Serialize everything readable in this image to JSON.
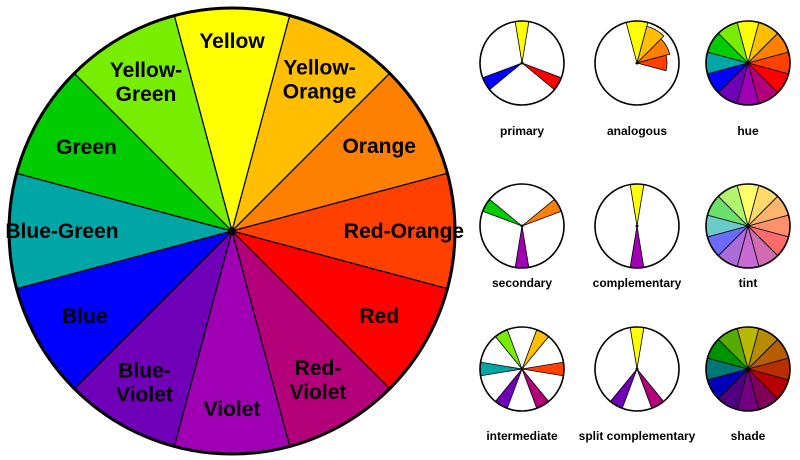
{
  "wheel": {
    "segments": [
      {
        "label": "Yellow",
        "color": "#ffff00"
      },
      {
        "label": "Yellow-Orange",
        "color": "#ffbf00"
      },
      {
        "label": "Orange",
        "color": "#ff8000"
      },
      {
        "label": "Red-Orange",
        "color": "#ff4000"
      },
      {
        "label": "Red",
        "color": "#ff0000"
      },
      {
        "label": "Red-Violet",
        "color": "#b3007a"
      },
      {
        "label": "Violet",
        "color": "#9f00b3"
      },
      {
        "label": "Blue-Violet",
        "color": "#7000b8"
      },
      {
        "label": "Blue",
        "color": "#0000ff"
      },
      {
        "label": "Blue-Green",
        "color": "#00a5a5"
      },
      {
        "label": "Green",
        "color": "#00cc00"
      },
      {
        "label": "Yellow-Green",
        "color": "#77ee00"
      }
    ]
  },
  "schemes": [
    {
      "label": "primary",
      "kind": "narrow",
      "show": [
        0,
        4,
        8
      ]
    },
    {
      "label": "analogous",
      "kind": "analogous",
      "show": [
        0,
        1,
        2,
        3
      ]
    },
    {
      "label": "hue",
      "kind": "full",
      "show": [
        0,
        1,
        2,
        3,
        4,
        5,
        6,
        7,
        8,
        9,
        10,
        11
      ]
    },
    {
      "label": "secondary",
      "kind": "narrow",
      "show": [
        2,
        6,
        10
      ]
    },
    {
      "label": "complementary",
      "kind": "narrow",
      "show": [
        0,
        6
      ]
    },
    {
      "label": "tint",
      "kind": "tint",
      "show": [
        0,
        1,
        2,
        3,
        4,
        5,
        6,
        7,
        8,
        9,
        10,
        11
      ]
    },
    {
      "label": "intermediate",
      "kind": "narrow",
      "show": [
        1,
        3,
        5,
        7,
        9,
        11
      ]
    },
    {
      "label": "split complementary",
      "kind": "narrow",
      "show": [
        0,
        5,
        7
      ]
    },
    {
      "label": "shade",
      "kind": "shade",
      "show": [
        0,
        1,
        2,
        3,
        4,
        5,
        6,
        7,
        8,
        9,
        10,
        11
      ]
    }
  ]
}
